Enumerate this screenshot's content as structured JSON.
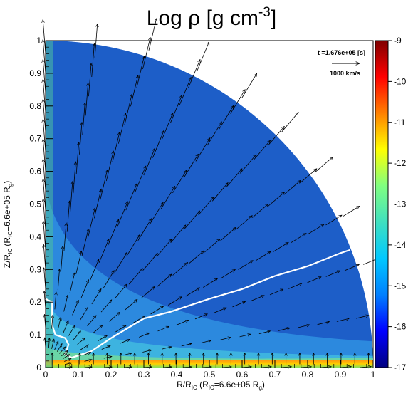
{
  "chart_data": {
    "type": "heatmap",
    "title_main": "Log ρ [g cm",
    "title_sup": "-3",
    "title_close": "]",
    "xlabel_main": "R/R",
    "xlabel_sub": "IC",
    "xlabel_paren": " (R",
    "xlabel_paren_sub": "IC",
    "xlabel_value": "=6.6e+05 R",
    "xlabel_value_sub": "g",
    "xlabel_close": ")",
    "ylabel_main": "Z/R",
    "ylabel_sub": "IC",
    "ylabel_paren": " (R",
    "ylabel_paren_sub": "IC",
    "ylabel_value": "=6.6e+05 R",
    "ylabel_value_sub": "g",
    "ylabel_close": ")",
    "xlim": [
      0,
      1
    ],
    "ylim": [
      0,
      1
    ],
    "x_ticks": [
      "0",
      "0.1",
      "0.2",
      "0.3",
      "0.4",
      "0.5",
      "0.6",
      "0.7",
      "0.8",
      "0.9",
      "1"
    ],
    "y_ticks": [
      "0",
      "0.1",
      "0.2",
      "0.3",
      "0.4",
      "0.5",
      "0.6",
      "0.7",
      "0.8",
      "0.9",
      "1"
    ],
    "colorbar": {
      "range": [
        -17,
        -9
      ],
      "ticks": [
        "-9",
        "-10",
        "-11",
        "-12",
        "-13",
        "-14",
        "-15",
        "-16",
        "-17"
      ],
      "colors": [
        "#00007f",
        "#0000ff",
        "#007fff",
        "#00c8ff",
        "#3fe0c0",
        "#80ff80",
        "#ffff00",
        "#ff8000",
        "#ff0000",
        "#7f0000"
      ]
    },
    "time_annotation": "t =1.676e+05 [s]",
    "velocity_scale_label": "1000 km/s",
    "velocity_scale_value_kms": 1000,
    "contour": {
      "color": "#ffffff",
      "points": [
        [
          0.0,
          0.21
        ],
        [
          0.02,
          0.2
        ],
        [
          0.02,
          0.13
        ],
        [
          0.03,
          0.1
        ],
        [
          0.06,
          0.09
        ],
        [
          0.07,
          0.07
        ],
        [
          0.06,
          0.04
        ],
        [
          0.08,
          0.03
        ],
        [
          0.14,
          0.05
        ],
        [
          0.2,
          0.09
        ],
        [
          0.3,
          0.15
        ],
        [
          0.38,
          0.17
        ],
        [
          0.5,
          0.21
        ],
        [
          0.6,
          0.24
        ],
        [
          0.7,
          0.28
        ],
        [
          0.8,
          0.31
        ],
        [
          0.9,
          0.35
        ],
        [
          0.93,
          0.36
        ]
      ]
    }
  }
}
